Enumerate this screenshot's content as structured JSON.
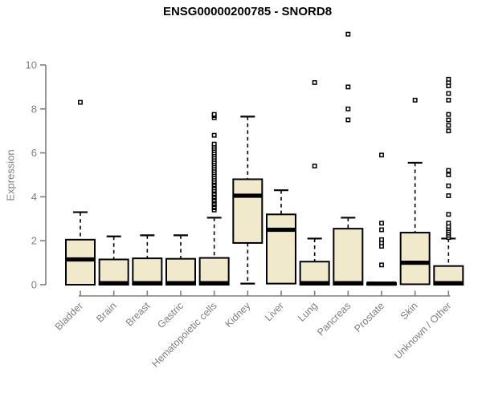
{
  "figure": {
    "title": "ENSG00000200785 - SNORD8",
    "ylabel": "Expression"
  },
  "colors": {
    "box_fill": "#F0E9CC",
    "box_stroke": "#000000",
    "median": "#000000",
    "axis": "#7f7f7f",
    "axis_text": "#7f7f7f",
    "title_text": "#000000",
    "background": "#ffffff"
  },
  "chart_data": {
    "type": "boxplot",
    "title": "ENSG00000200785 - SNORD8",
    "xlabel": "",
    "ylabel": "Expression",
    "ylim": [
      0,
      10
    ],
    "yticks": [
      0,
      2,
      4,
      6,
      8,
      10
    ],
    "grid": false,
    "legend": "none",
    "categories": [
      "Bladder",
      "Brain",
      "Breast",
      "Gastric",
      "Hematopoietic cells",
      "Kidney",
      "Liver",
      "Lung",
      "Pancreas",
      "Prostate",
      "Skin",
      "Unknown / Other"
    ],
    "boxes": [
      {
        "category": "Bladder",
        "whisker_low": 0,
        "q1": 0,
        "median": 1.15,
        "q3": 2.05,
        "whisker_high": 3.3,
        "outliers": [
          8.3
        ]
      },
      {
        "category": "Brain",
        "whisker_low": 0,
        "q1": 0,
        "median": 0.07,
        "q3": 1.15,
        "whisker_high": 2.2,
        "outliers": []
      },
      {
        "category": "Breast",
        "whisker_low": 0,
        "q1": 0,
        "median": 0.07,
        "q3": 1.2,
        "whisker_high": 2.25,
        "outliers": []
      },
      {
        "category": "Gastric",
        "whisker_low": 0,
        "q1": 0,
        "median": 0.07,
        "q3": 1.18,
        "whisker_high": 2.25,
        "outliers": []
      },
      {
        "category": "Hematopoietic cells",
        "whisker_low": 0,
        "q1": 0,
        "median": 0.07,
        "q3": 1.22,
        "whisker_high": 3.05,
        "outliers": [
          3.4,
          3.5,
          3.55,
          3.65,
          3.7,
          3.8,
          3.85,
          3.95,
          4.0,
          4.1,
          4.15,
          4.25,
          4.3,
          4.4,
          4.5,
          4.55,
          4.65,
          4.7,
          4.8,
          4.9,
          5.0,
          5.1,
          5.2,
          5.3,
          5.4,
          5.5,
          5.6,
          5.7,
          5.8,
          5.9,
          6.0,
          6.1,
          6.2,
          6.3,
          6.4,
          6.8,
          7.6,
          7.7,
          7.75
        ]
      },
      {
        "category": "Kidney",
        "whisker_low": 0.05,
        "q1": 1.9,
        "median": 4.05,
        "q3": 4.8,
        "whisker_high": 7.65,
        "outliers": []
      },
      {
        "category": "Liver",
        "whisker_low": 0,
        "q1": 0.05,
        "median": 2.5,
        "q3": 3.2,
        "whisker_high": 4.3,
        "outliers": []
      },
      {
        "category": "Lung",
        "whisker_low": 0,
        "q1": 0,
        "median": 0.07,
        "q3": 1.05,
        "whisker_high": 2.1,
        "outliers": [
          5.4,
          9.2
        ]
      },
      {
        "category": "Pancreas",
        "whisker_low": 0,
        "q1": 0,
        "median": 0.07,
        "q3": 2.55,
        "whisker_high": 3.05,
        "outliers": [
          7.5,
          8.0,
          9.0,
          11.4
        ]
      },
      {
        "category": "Prostate",
        "whisker_low": 0,
        "q1": 0,
        "median": 0.05,
        "q3": 0.08,
        "whisker_high": 0.08,
        "outliers": [
          0.9,
          1.75,
          1.9,
          2.05,
          2.5,
          2.8,
          5.9
        ]
      },
      {
        "category": "Skin",
        "whisker_low": 0,
        "q1": 0.02,
        "median": 1.0,
        "q3": 2.37,
        "whisker_high": 5.55,
        "outliers": [
          8.4
        ]
      },
      {
        "category": "Unknown / Other",
        "whisker_low": 0,
        "q1": 0,
        "median": 0.07,
        "q3": 0.85,
        "whisker_high": 2.1,
        "outliers": [
          2.15,
          2.25,
          2.35,
          2.45,
          2.55,
          2.65,
          2.8,
          3.2,
          4.05,
          4.5,
          5.0,
          5.2,
          7.0,
          7.25,
          7.5,
          7.75,
          8.4,
          8.7,
          9.05,
          9.2,
          9.35
        ]
      }
    ]
  }
}
